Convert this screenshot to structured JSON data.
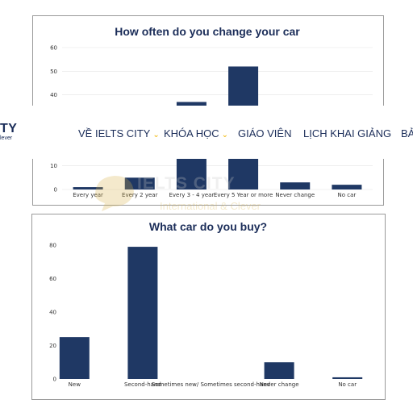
{
  "header": {
    "logo_text": "TY",
    "logo_sub": "lever",
    "nav": [
      {
        "label": "VỀ IELTS CITY",
        "has_dropdown": true
      },
      {
        "label": "KHÓA HỌC",
        "has_dropdown": true
      },
      {
        "label": "GIÁO VIÊN",
        "has_dropdown": false
      },
      {
        "label": "LỊCH KHAI GIẢNG",
        "has_dropdown": false
      },
      {
        "label": "BẢ",
        "has_dropdown": false
      }
    ],
    "dropdown_icon": "chevron-down-icon",
    "accent_color": "#f0b400"
  },
  "watermark": {
    "name": "IELTS CITY",
    "tagline": "International & Clever"
  },
  "chart_data": [
    {
      "type": "bar",
      "title": "How often do you change your car",
      "categories": [
        "Every year",
        "Every 2 year",
        "Every 3 - 4 year",
        "Every 5 Year or more",
        "Never change",
        "No car"
      ],
      "values": [
        1,
        5,
        37,
        52,
        3,
        2
      ],
      "ylim": [
        0,
        60
      ],
      "yticks": [
        0,
        10,
        20,
        30,
        40,
        50,
        60
      ],
      "visible_yticks": [
        "0",
        "10",
        "40",
        "50",
        "60"
      ],
      "color": "#1f3864",
      "grid": true
    },
    {
      "type": "bar",
      "title": "What car do you buy?",
      "categories": [
        "New",
        "Second-hand",
        "Sometimes new/ Sometimes second-hand",
        "Never change",
        "No car"
      ],
      "values": [
        25,
        79,
        0,
        10,
        1
      ],
      "ylim": [
        0,
        80
      ],
      "yticks": [
        "0",
        "20",
        "40",
        "60",
        "80"
      ],
      "color": "#1f3864",
      "grid": false
    }
  ]
}
